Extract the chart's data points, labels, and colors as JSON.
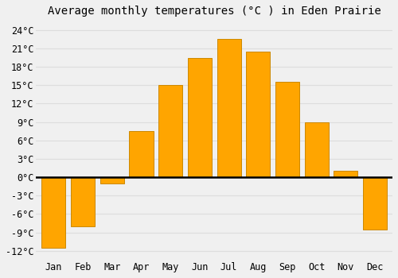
{
  "title": "Average monthly temperatures (°C ) in Eden Prairie",
  "months": [
    "Jan",
    "Feb",
    "Mar",
    "Apr",
    "May",
    "Jun",
    "Jul",
    "Aug",
    "Sep",
    "Oct",
    "Nov",
    "Dec"
  ],
  "values": [
    -11.5,
    -8.0,
    -1.0,
    7.5,
    15.0,
    19.5,
    22.5,
    20.5,
    15.5,
    9.0,
    1.0,
    -8.5
  ],
  "bar_color": "#FFA500",
  "bar_edge_color": "#CC8800",
  "background_color": "#F0F0F0",
  "grid_color": "#DDDDDD",
  "yticks": [
    -12,
    -9,
    -6,
    -3,
    0,
    3,
    6,
    9,
    12,
    15,
    18,
    21,
    24
  ],
  "ylim": [
    -13.5,
    25.5
  ],
  "zero_line_color": "#000000",
  "title_fontsize": 10,
  "tick_fontsize": 8.5,
  "bar_width": 0.82
}
